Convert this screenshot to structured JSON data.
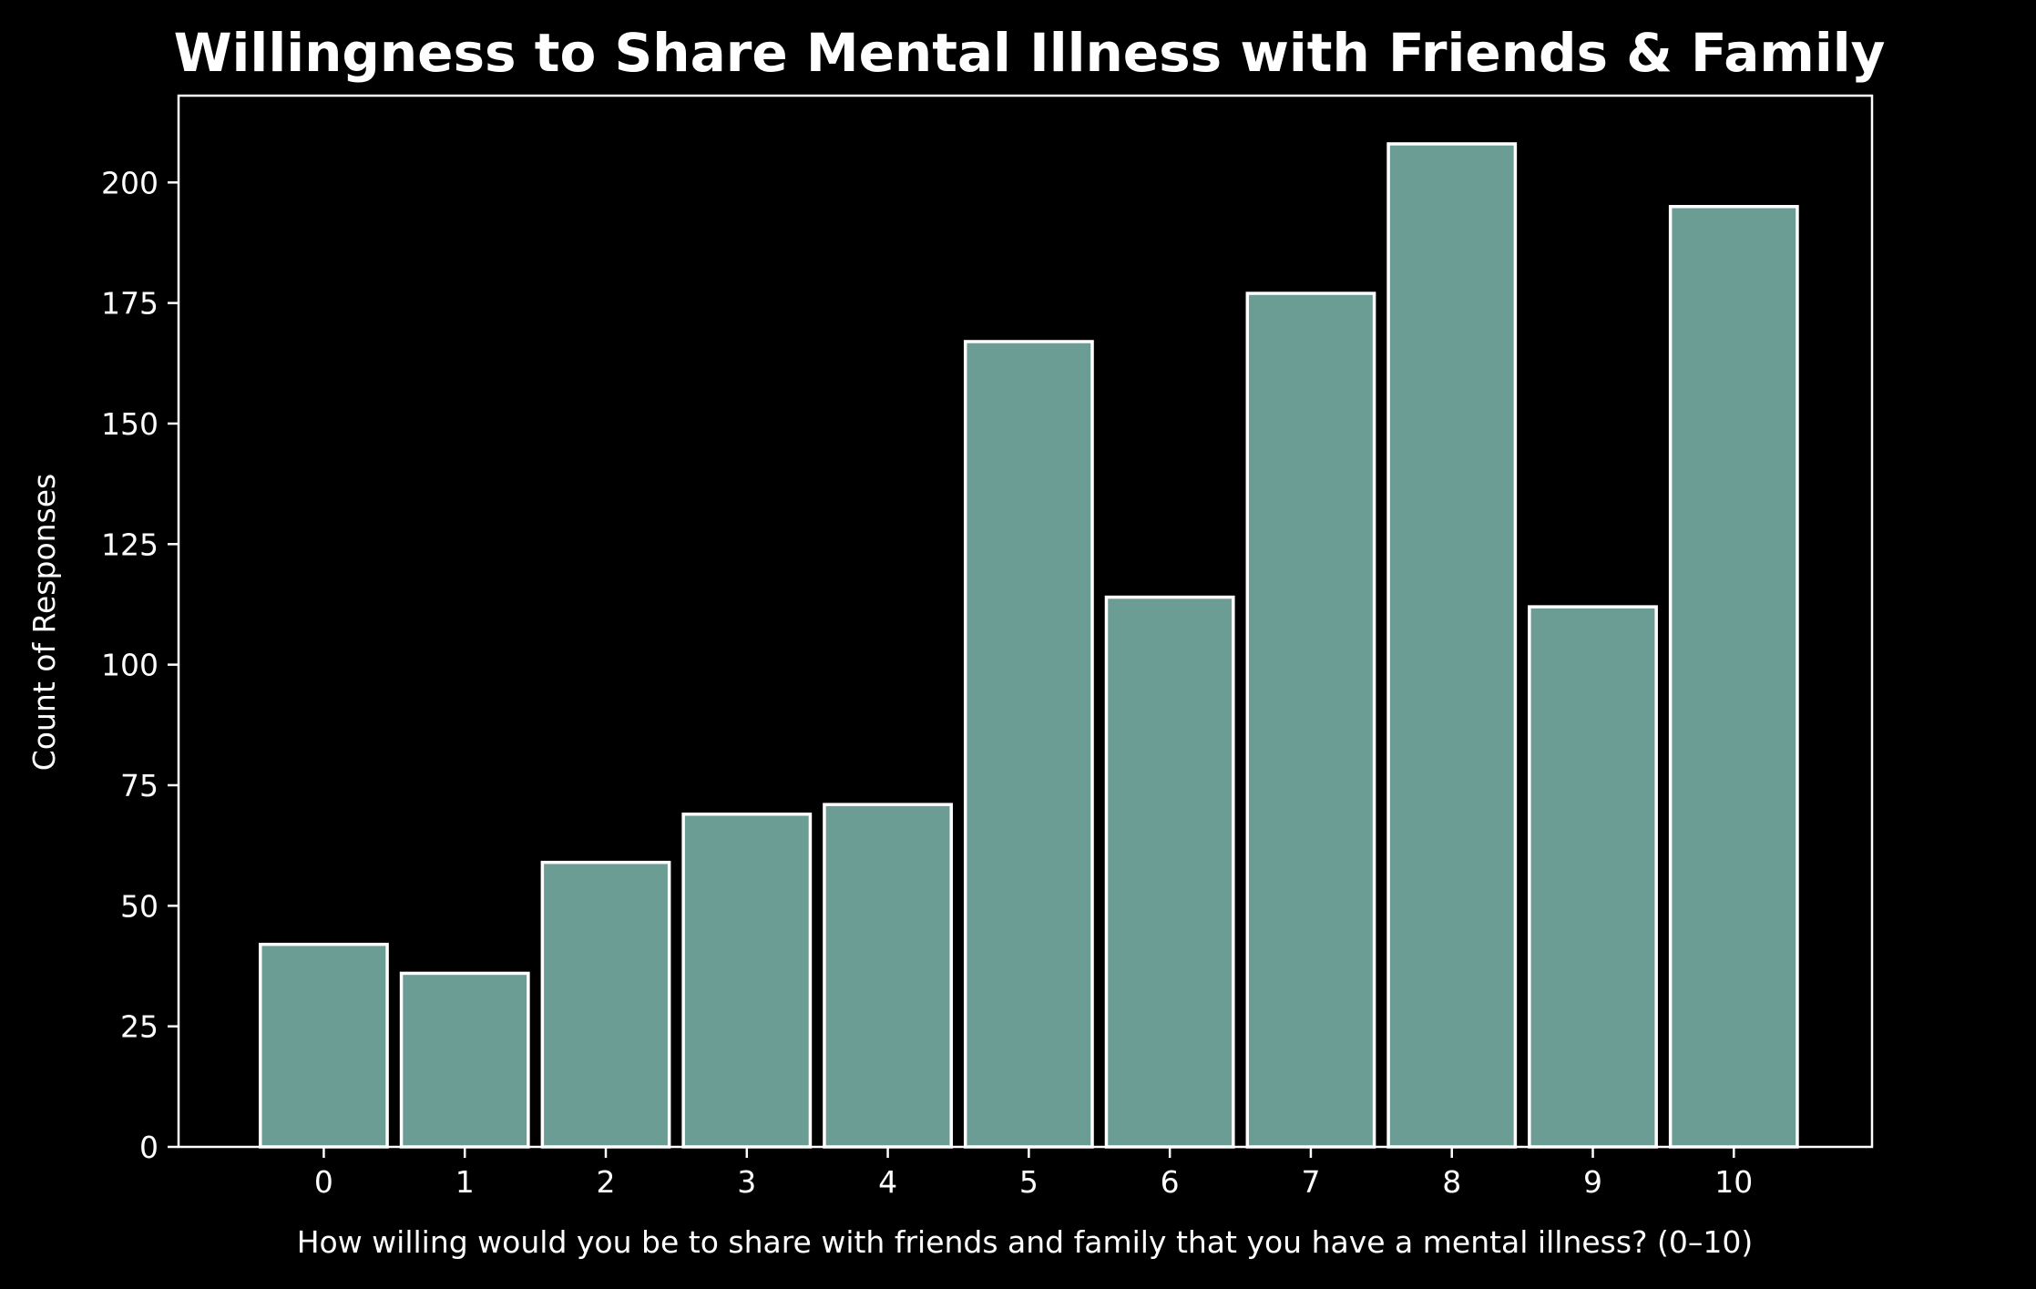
{
  "chart_data": {
    "type": "bar",
    "title": "Willingness to Share Mental Illness with Friends & Family",
    "xlabel": "How willing would you be to share with friends and family that you have a mental illness? (0–10)",
    "ylabel": "Count of Responses",
    "categories": [
      "0",
      "1",
      "2",
      "3",
      "4",
      "5",
      "6",
      "7",
      "8",
      "9",
      "10"
    ],
    "values": [
      42,
      36,
      59,
      69,
      71,
      167,
      114,
      177,
      208,
      112,
      195
    ],
    "ylim": [
      0,
      218
    ],
    "yticks": [
      0,
      25,
      50,
      75,
      100,
      125,
      150,
      175,
      200
    ],
    "bar_color": "#6b9d95",
    "edge_color": "#ffffff",
    "background": "#000000",
    "grid": false
  }
}
